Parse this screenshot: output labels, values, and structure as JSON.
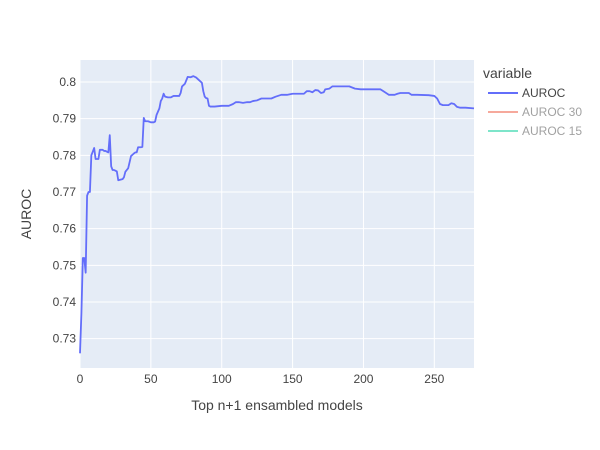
{
  "chart_data": {
    "type": "line",
    "xlabel": "Top n+1 ensambled models",
    "ylabel": "AUROC",
    "xlim": [
      0,
      278
    ],
    "ylim": [
      0.722,
      0.806
    ],
    "x_ticks": [
      0,
      50,
      100,
      150,
      200,
      250
    ],
    "x_tick_labels": [
      "0",
      "50",
      "100",
      "150",
      "200",
      "250"
    ],
    "y_ticks": [
      0.73,
      0.74,
      0.75,
      0.76,
      0.77,
      0.78,
      0.79,
      0.8
    ],
    "y_tick_labels": [
      "0.73",
      "0.74",
      "0.75",
      "0.76",
      "0.77",
      "0.78",
      "0.79",
      "0.8"
    ],
    "grid": true,
    "plot_background": "#e5ecf6",
    "legend": {
      "title": "variable",
      "position": "right",
      "entries": [
        {
          "name": "AUROC",
          "color": "#636efa",
          "visible": true
        },
        {
          "name": "AUROC 30",
          "color": "#ef553b",
          "visible": false
        },
        {
          "name": "AUROC 15",
          "color": "#00cc96",
          "visible": false
        }
      ]
    },
    "series": [
      {
        "name": "AUROC",
        "color": "#636efa",
        "points": [
          [
            0,
            0.726
          ],
          [
            1,
            0.737
          ],
          [
            2,
            0.752
          ],
          [
            3,
            0.752
          ],
          [
            4,
            0.748
          ],
          [
            5,
            0.769
          ],
          [
            6,
            0.77
          ],
          [
            7,
            0.77
          ],
          [
            8,
            0.78
          ],
          [
            9,
            0.781
          ],
          [
            10,
            0.782
          ],
          [
            11,
            0.779
          ],
          [
            12,
            0.779
          ],
          [
            13,
            0.779
          ],
          [
            14,
            0.7815
          ],
          [
            15,
            0.7815
          ],
          [
            16,
            0.7815
          ],
          [
            17,
            0.7812
          ],
          [
            18,
            0.7812
          ],
          [
            19,
            0.781
          ],
          [
            20,
            0.7808
          ],
          [
            21,
            0.7855
          ],
          [
            22,
            0.777
          ],
          [
            23,
            0.776
          ],
          [
            24,
            0.776
          ],
          [
            25,
            0.7758
          ],
          [
            26,
            0.7756
          ],
          [
            27,
            0.7732
          ],
          [
            28,
            0.7733
          ],
          [
            30,
            0.7735
          ],
          [
            31,
            0.774
          ],
          [
            32,
            0.7755
          ],
          [
            34,
            0.7765
          ],
          [
            36,
            0.7798
          ],
          [
            38,
            0.7805
          ],
          [
            39,
            0.7808
          ],
          [
            40,
            0.7808
          ],
          [
            41,
            0.7822
          ],
          [
            43,
            0.7822
          ],
          [
            44,
            0.7823
          ],
          [
            45,
            0.7902
          ],
          [
            46,
            0.7893
          ],
          [
            48,
            0.7893
          ],
          [
            50,
            0.789
          ],
          [
            52,
            0.789
          ],
          [
            53,
            0.7892
          ],
          [
            54,
            0.791
          ],
          [
            56,
            0.7928
          ],
          [
            57,
            0.7948
          ],
          [
            58,
            0.7955
          ],
          [
            59,
            0.7968
          ],
          [
            60,
            0.796
          ],
          [
            62,
            0.7958
          ],
          [
            64,
            0.7958
          ],
          [
            66,
            0.7962
          ],
          [
            68,
            0.7962
          ],
          [
            70,
            0.7962
          ],
          [
            71,
            0.797
          ],
          [
            72,
            0.7988
          ],
          [
            74,
            0.7995
          ],
          [
            76,
            0.8014
          ],
          [
            78,
            0.8013
          ],
          [
            80,
            0.8016
          ],
          [
            82,
            0.8012
          ],
          [
            84,
            0.8005
          ],
          [
            86,
            0.7998
          ],
          [
            87,
            0.7975
          ],
          [
            88,
            0.796
          ],
          [
            89,
            0.7956
          ],
          [
            90,
            0.7955
          ],
          [
            91,
            0.7935
          ],
          [
            92,
            0.7933
          ],
          [
            95,
            0.7933
          ],
          [
            100,
            0.7935
          ],
          [
            105,
            0.7935
          ],
          [
            108,
            0.794
          ],
          [
            110,
            0.7945
          ],
          [
            112,
            0.7945
          ],
          [
            115,
            0.7943
          ],
          [
            118,
            0.7945
          ],
          [
            120,
            0.7945
          ],
          [
            122,
            0.7948
          ],
          [
            125,
            0.795
          ],
          [
            128,
            0.7955
          ],
          [
            132,
            0.7955
          ],
          [
            135,
            0.7955
          ],
          [
            138,
            0.796
          ],
          [
            142,
            0.7965
          ],
          [
            146,
            0.7965
          ],
          [
            150,
            0.7968
          ],
          [
            158,
            0.7968
          ],
          [
            160,
            0.7975
          ],
          [
            162,
            0.7975
          ],
          [
            164,
            0.7972
          ],
          [
            166,
            0.7978
          ],
          [
            168,
            0.7977
          ],
          [
            170,
            0.797
          ],
          [
            172,
            0.7972
          ],
          [
            173,
            0.798
          ],
          [
            176,
            0.7982
          ],
          [
            178,
            0.7988
          ],
          [
            182,
            0.7988
          ],
          [
            186,
            0.7988
          ],
          [
            190,
            0.7988
          ],
          [
            192,
            0.7985
          ],
          [
            194,
            0.7982
          ],
          [
            198,
            0.798
          ],
          [
            205,
            0.798
          ],
          [
            212,
            0.798
          ],
          [
            214,
            0.7975
          ],
          [
            216,
            0.797
          ],
          [
            218,
            0.7965
          ],
          [
            222,
            0.7965
          ],
          [
            224,
            0.7968
          ],
          [
            226,
            0.797
          ],
          [
            232,
            0.797
          ],
          [
            234,
            0.7965
          ],
          [
            238,
            0.7965
          ],
          [
            246,
            0.7964
          ],
          [
            250,
            0.7962
          ],
          [
            252,
            0.7955
          ],
          [
            254,
            0.794
          ],
          [
            256,
            0.7937
          ],
          [
            260,
            0.7937
          ],
          [
            262,
            0.7942
          ],
          [
            264,
            0.794
          ],
          [
            266,
            0.7932
          ],
          [
            268,
            0.793
          ],
          [
            272,
            0.793
          ],
          [
            278,
            0.7928
          ]
        ]
      }
    ]
  }
}
